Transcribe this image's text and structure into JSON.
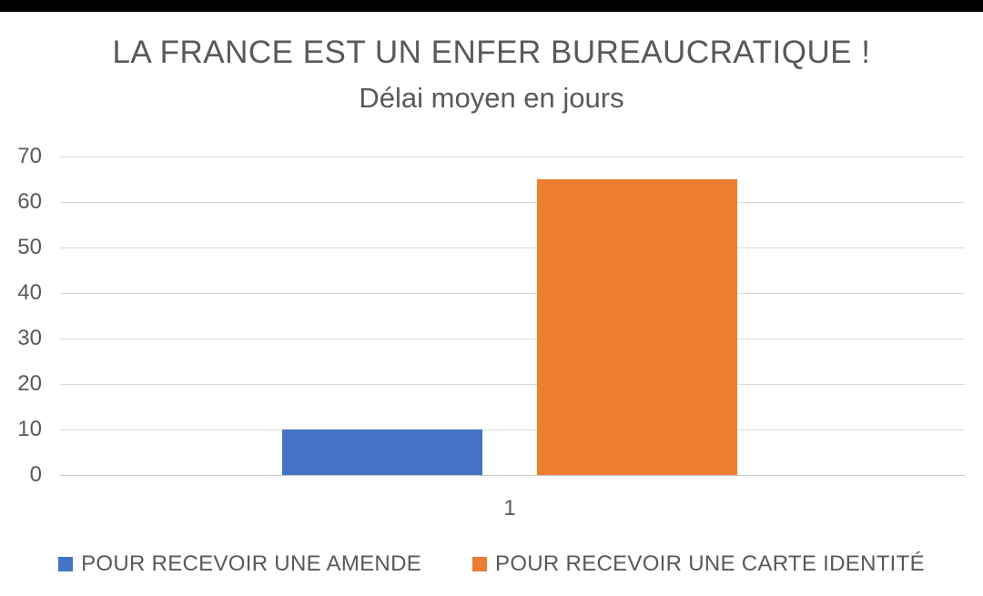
{
  "window": {
    "top_bar_color": "#000000",
    "background": "#FFFFFF"
  },
  "chart_data": {
    "type": "bar",
    "title": "LA FRANCE EST UN ENFER BUREAUCRATIQUE !",
    "subtitle": "Délai moyen en jours",
    "categories": [
      "1"
    ],
    "series": [
      {
        "name": "POUR RECEVOIR UNE AMENDE",
        "color": "#4472C4",
        "values": [
          10
        ]
      },
      {
        "name": "POUR RECEVOIR UNE CARTE IDENTITÉ",
        "color": "#ED7D31",
        "values": [
          65
        ]
      }
    ],
    "xlabel": "",
    "ylabel": "",
    "ylim": [
      0,
      70
    ],
    "yticks": [
      0,
      10,
      20,
      30,
      40,
      50,
      60,
      70
    ],
    "grid": true,
    "gridline_color": "#D9D9D9",
    "axis_line_color": "#C6C6C6",
    "text_color": "#595959",
    "legend_position": "bottom"
  }
}
